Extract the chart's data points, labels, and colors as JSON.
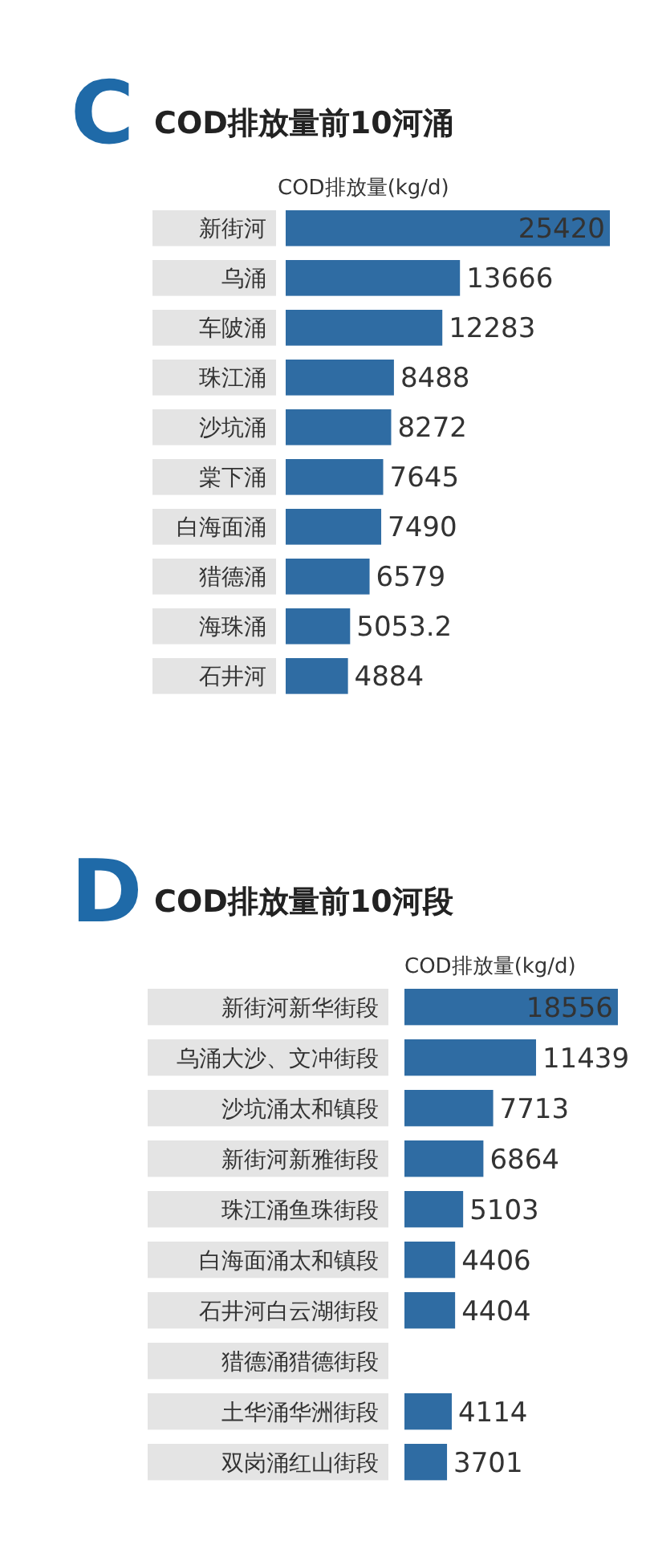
{
  "chart_data": [
    {
      "type": "bar",
      "orientation": "horizontal",
      "title": "COD排放量前10河涌",
      "annotations": [
        "C"
      ],
      "xlabel": "COD排放量(kg/d)",
      "data_labels": true,
      "categories": [
        "新街河",
        "乌涌",
        "车陂涌",
        "珠江涌",
        "沙坑涌",
        "棠下涌",
        "白海面涌",
        "猎德涌",
        "海珠涌",
        "石井河"
      ],
      "series": [
        {
          "color": "#2f6ca3",
          "values": [
            25420,
            13666,
            12283,
            8488,
            8272,
            7645,
            7490,
            6579,
            5053.2,
            4884
          ]
        }
      ]
    },
    {
      "type": "bar",
      "orientation": "horizontal",
      "title": "COD排放量前10河段",
      "annotations": [
        "D"
      ],
      "xlabel": "COD排放量(kg/d)",
      "data_labels": true,
      "categories": [
        "新街河新华街段",
        "乌涌大沙、文冲街段",
        "沙坑涌太和镇段",
        "新街河新雅街段",
        "珠江涌鱼珠街段",
        "白海面涌太和镇段",
        "石井河白云湖街段",
        "猎德涌猎德街段",
        "土华涌华洲街段",
        "双岗涌红山街段"
      ],
      "series": [
        {
          "color": "#2f6ca3",
          "values": [
            18556,
            11439,
            7713,
            6864,
            5103,
            4406,
            4404,
            null,
            4114,
            3701
          ]
        }
      ]
    }
  ]
}
